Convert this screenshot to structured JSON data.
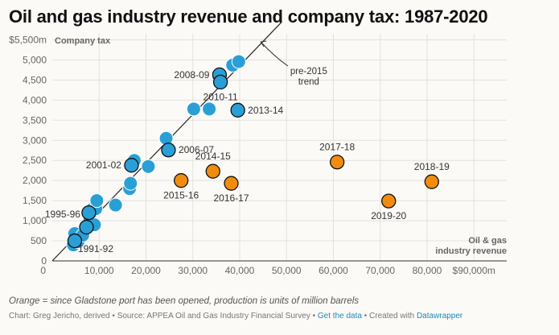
{
  "title": "Oil and gas industry revenue and company tax: 1987-2020",
  "note": "Orange = since Gladstone port has been opened, production is units of million barrels",
  "footer": {
    "chart_by": "Chart: Greg Jericho, derived",
    "source": "Source: APPEA Oil and Gas Industry Financial Survey",
    "get_data": "Get the data",
    "created_with": "Created with",
    "tool": "Datawrapper",
    "sep": "•"
  },
  "colors": {
    "blue": "#2a9fd6",
    "orange": "#f28c0f",
    "grid": "#e3e1de",
    "axis": "#333333"
  },
  "chart_data": {
    "type": "scatter",
    "xlabel": "Oil & gas industry revenue",
    "ylabel": "Company tax",
    "xlim": [
      0,
      97000
    ],
    "ylim": [
      0,
      5650
    ],
    "x_ticks": [
      {
        "value": 0,
        "label": "0"
      },
      {
        "value": 10000,
        "label": "10,000"
      },
      {
        "value": 20000,
        "label": "20,000"
      },
      {
        "value": 30000,
        "label": "30,000"
      },
      {
        "value": 40000,
        "label": "40,000"
      },
      {
        "value": 50000,
        "label": "50,000"
      },
      {
        "value": 60000,
        "label": "60,000"
      },
      {
        "value": 70000,
        "label": "70,000"
      },
      {
        "value": 80000,
        "label": "80,000"
      },
      {
        "value": 90000,
        "label": "$90,000m"
      }
    ],
    "y_ticks": [
      {
        "value": 0,
        "label": "0"
      },
      {
        "value": 500,
        "label": "500"
      },
      {
        "value": 1000,
        "label": "1,000"
      },
      {
        "value": 1500,
        "label": "1,500"
      },
      {
        "value": 2000,
        "label": "2,000"
      },
      {
        "value": 2500,
        "label": "2,500"
      },
      {
        "value": 3000,
        "label": "3,000"
      },
      {
        "value": 3500,
        "label": "3,500"
      },
      {
        "value": 4000,
        "label": "4,000"
      },
      {
        "value": 4500,
        "label": "4,500"
      },
      {
        "value": 5000,
        "label": "5,000"
      },
      {
        "value": 5500,
        "label": "$5,500m"
      }
    ],
    "grid": true,
    "trend": {
      "label": [
        "pre-2015",
        "trend"
      ],
      "from": [
        0,
        0
      ],
      "to": [
        49000,
        5950
      ]
    },
    "points": [
      {
        "x": 4500,
        "y": 400,
        "group": "blue"
      },
      {
        "x": 4800,
        "y": 680,
        "group": "blue"
      },
      {
        "x": 5500,
        "y": 480,
        "group": "blue"
      },
      {
        "x": 6500,
        "y": 640,
        "group": "blue"
      },
      {
        "x": 7200,
        "y": 850,
        "group": "blue"
      },
      {
        "x": 8000,
        "y": 1000,
        "group": "blue"
      },
      {
        "x": 8500,
        "y": 1280,
        "group": "blue"
      },
      {
        "x": 9000,
        "y": 900,
        "group": "blue"
      },
      {
        "x": 9300,
        "y": 1300,
        "group": "blue"
      },
      {
        "x": 9500,
        "y": 1500,
        "group": "blue"
      },
      {
        "x": 13500,
        "y": 1390,
        "group": "blue"
      },
      {
        "x": 16500,
        "y": 1800,
        "group": "blue"
      },
      {
        "x": 16700,
        "y": 1930,
        "group": "blue"
      },
      {
        "x": 17500,
        "y": 2500,
        "group": "blue"
      },
      {
        "x": 20500,
        "y": 2350,
        "group": "blue"
      },
      {
        "x": 24300,
        "y": 3050,
        "group": "blue"
      },
      {
        "x": 30200,
        "y": 3780,
        "group": "blue"
      },
      {
        "x": 33500,
        "y": 3780,
        "group": "blue"
      },
      {
        "x": 38500,
        "y": 4870,
        "group": "blue"
      },
      {
        "x": 39800,
        "y": 4960,
        "group": "blue"
      },
      {
        "x": 4800,
        "y": 500,
        "group": "blue-highlight",
        "label": "1991-92",
        "label_pos": "right-below"
      },
      {
        "x": 7800,
        "y": 1200,
        "group": "blue-highlight",
        "label": "1995-96",
        "label_pos": "left-below"
      },
      {
        "x": 7300,
        "y": 840,
        "group": "blue-highlight",
        "label": "",
        "label_pos": "none"
      },
      {
        "x": 16900,
        "y": 2380,
        "group": "blue-highlight",
        "label": "2001-02",
        "label_pos": "left"
      },
      {
        "x": 24800,
        "y": 2760,
        "group": "blue-highlight",
        "label": "2006-07",
        "label_pos": "right"
      },
      {
        "x": 35700,
        "y": 4630,
        "group": "blue-highlight",
        "label": "2008-09",
        "label_pos": "left"
      },
      {
        "x": 35900,
        "y": 4450,
        "group": "blue-highlight",
        "label": "2010-11",
        "label_pos": "below"
      },
      {
        "x": 39600,
        "y": 3750,
        "group": "blue-highlight",
        "label": "2013-14",
        "label_pos": "right"
      },
      {
        "x": 27500,
        "y": 2000,
        "group": "orange",
        "label": "2015-16",
        "label_pos": "below-left"
      },
      {
        "x": 34300,
        "y": 2230,
        "group": "orange",
        "label": "2014-15",
        "label_pos": "above"
      },
      {
        "x": 38200,
        "y": 1930,
        "group": "orange",
        "label": "2016-17",
        "label_pos": "below"
      },
      {
        "x": 60800,
        "y": 2460,
        "group": "orange",
        "label": "2017-18",
        "label_pos": "above"
      },
      {
        "x": 71800,
        "y": 1490,
        "group": "orange",
        "label": "2019-20",
        "label_pos": "below"
      },
      {
        "x": 81000,
        "y": 1970,
        "group": "orange",
        "label": "2018-19",
        "label_pos": "above"
      }
    ]
  }
}
